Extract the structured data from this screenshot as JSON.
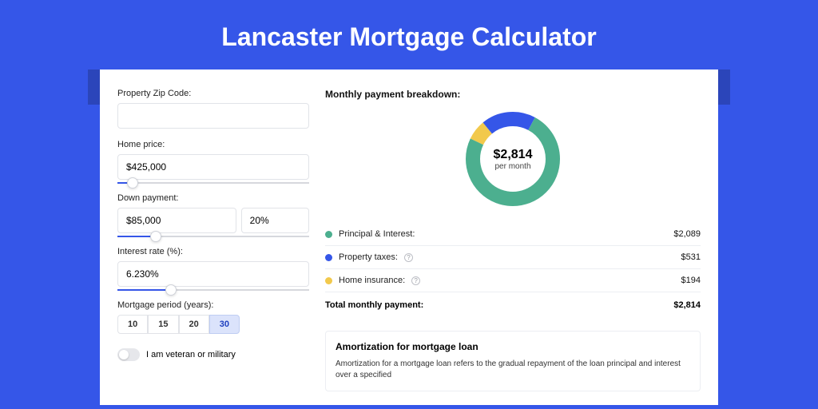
{
  "page": {
    "title": "Lancaster Mortgage Calculator",
    "background_color": "#3556e8",
    "strip_color": "#2b45ba",
    "card_color": "#ffffff"
  },
  "form": {
    "zip_label": "Property Zip Code:",
    "zip_value": "",
    "home_price_label": "Home price:",
    "home_price_value": "$425,000",
    "home_price_slider_pct": 8,
    "down_payment_label": "Down payment:",
    "down_payment_value": "$85,000",
    "down_payment_pct_value": "20%",
    "down_payment_slider_pct": 20,
    "interest_label": "Interest rate (%):",
    "interest_value": "6.230%",
    "interest_slider_pct": 28,
    "period_label": "Mortgage period (years):",
    "periods": [
      "10",
      "15",
      "20",
      "30"
    ],
    "period_active_index": 3,
    "veteran_label": "I am veteran or military",
    "veteran_on": false
  },
  "breakdown": {
    "title": "Monthly payment breakdown:",
    "center_amount": "$2,814",
    "center_sub": "per month",
    "segments": [
      {
        "name": "Principal & Interest:",
        "value": "$2,089",
        "color": "#4caf8f",
        "fraction": 0.742
      },
      {
        "name": "Property taxes:",
        "value": "$531",
        "color": "#3556e8",
        "fraction": 0.189,
        "info": true
      },
      {
        "name": "Home insurance:",
        "value": "$194",
        "color": "#f2c94c",
        "fraction": 0.069,
        "info": true
      }
    ],
    "total_label": "Total monthly payment:",
    "total_value": "$2,814"
  },
  "amort": {
    "title": "Amortization for mortgage loan",
    "body": "Amortization for a mortgage loan refers to the gradual repayment of the loan principal and interest over a specified"
  },
  "donut_style": {
    "radius": 50,
    "stroke_width": 18,
    "bg_stroke": "#f1f2f5"
  }
}
